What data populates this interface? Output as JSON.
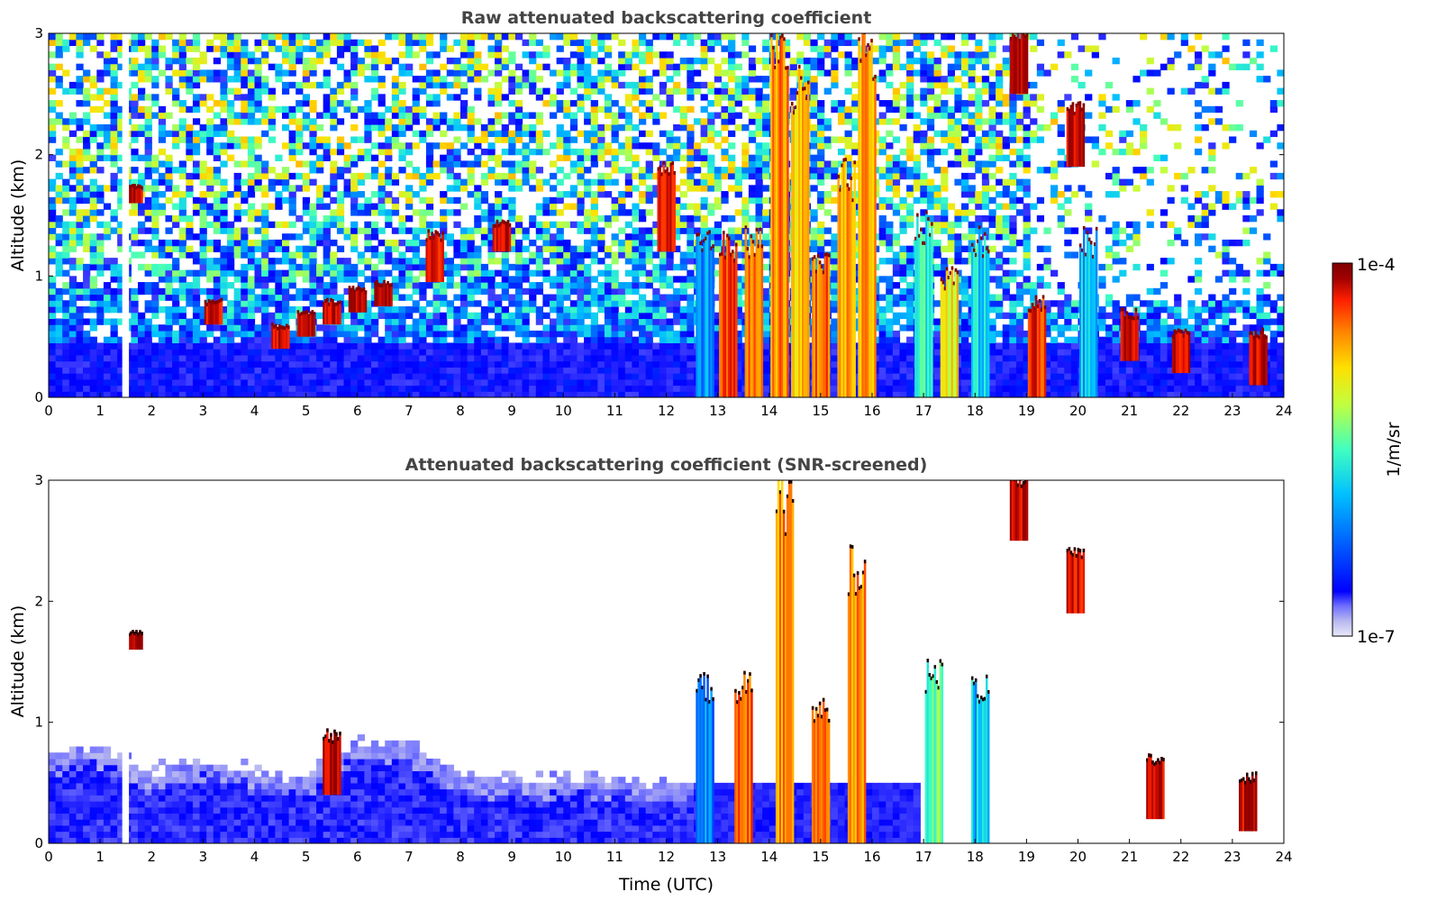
{
  "chart_data": [
    {
      "type": "heatmap",
      "title": "Raw attenuated backscattering coefficient",
      "xlabel": "",
      "ylabel": "Altitude (km)",
      "xlim": [
        0,
        24
      ],
      "ylim": [
        0,
        3
      ],
      "x_ticks": [
        "0",
        "1",
        "2",
        "3",
        "4",
        "5",
        "6",
        "7",
        "8",
        "9",
        "10",
        "11",
        "12",
        "13",
        "14",
        "15",
        "16",
        "17",
        "18",
        "19",
        "20",
        "21",
        "22",
        "23",
        "24"
      ],
      "y_ticks": [
        "0",
        "1",
        "2",
        "3"
      ],
      "grid": false,
      "gap": {
        "x_start": 1.43,
        "x_end": 1.56
      },
      "features": [
        {
          "x": 1.65,
          "y0": 1.6,
          "y1": 1.75,
          "level": 0.98
        },
        {
          "x": 3.2,
          "y0": 0.6,
          "y1": 0.8,
          "level": 0.96
        },
        {
          "x": 4.5,
          "y0": 0.4,
          "y1": 0.6,
          "level": 0.97
        },
        {
          "x": 5.0,
          "y0": 0.5,
          "y1": 0.7,
          "level": 0.97
        },
        {
          "x": 5.5,
          "y0": 0.6,
          "y1": 0.8,
          "level": 0.97
        },
        {
          "x": 6.0,
          "y0": 0.7,
          "y1": 0.9,
          "level": 0.98
        },
        {
          "x": 6.5,
          "y0": 0.75,
          "y1": 0.95,
          "level": 0.98
        },
        {
          "x": 7.5,
          "y0": 0.95,
          "y1": 1.35,
          "level": 0.95
        },
        {
          "x": 8.8,
          "y0": 1.2,
          "y1": 1.45,
          "level": 0.95
        },
        {
          "x": 12.0,
          "y0": 1.2,
          "y1": 1.9,
          "level": 0.96
        },
        {
          "x": 12.75,
          "y0": 0,
          "y1": 1.3,
          "level": 0.45
        },
        {
          "x": 13.2,
          "y0": 0,
          "y1": 1.25,
          "level": 0.88
        },
        {
          "x": 13.7,
          "y0": 0,
          "y1": 1.3,
          "level": 0.86
        },
        {
          "x": 14.2,
          "y0": 0,
          "y1": 2.9,
          "level": 0.82
        },
        {
          "x": 14.6,
          "y0": 0,
          "y1": 2.5,
          "level": 0.75
        },
        {
          "x": 15.0,
          "y0": 0,
          "y1": 1.1,
          "level": 0.85
        },
        {
          "x": 15.5,
          "y0": 0,
          "y1": 1.8,
          "level": 0.78
        },
        {
          "x": 15.9,
          "y0": 0,
          "y1": 2.8,
          "level": 0.8
        },
        {
          "x": 17.0,
          "y0": 0,
          "y1": 1.4,
          "level": 0.55
        },
        {
          "x": 17.5,
          "y0": 0,
          "y1": 1.0,
          "level": 0.72
        },
        {
          "x": 18.1,
          "y0": 0,
          "y1": 1.3,
          "level": 0.5
        },
        {
          "x": 18.85,
          "y0": 2.5,
          "y1": 3.0,
          "level": 0.97
        },
        {
          "x": 19.2,
          "y0": 0,
          "y1": 0.8,
          "level": 0.9
        },
        {
          "x": 19.95,
          "y0": 1.9,
          "y1": 2.4,
          "level": 0.95
        },
        {
          "x": 20.2,
          "y0": 0,
          "y1": 1.3,
          "level": 0.5
        },
        {
          "x": 21.0,
          "y0": 0.3,
          "y1": 0.7,
          "level": 0.96
        },
        {
          "x": 22.0,
          "y0": 0.2,
          "y1": 0.55,
          "level": 0.96
        },
        {
          "x": 23.5,
          "y0": 0.1,
          "y1": 0.55,
          "level": 0.97
        }
      ]
    },
    {
      "type": "heatmap",
      "title": "Attenuated backscattering coefficient (SNR-screened)",
      "xlabel": "Time (UTC)",
      "ylabel": "Altitude (km)",
      "xlim": [
        0,
        24
      ],
      "ylim": [
        0,
        3
      ],
      "x_ticks": [
        "0",
        "1",
        "2",
        "3",
        "4",
        "5",
        "6",
        "7",
        "8",
        "9",
        "10",
        "11",
        "12",
        "13",
        "14",
        "15",
        "16",
        "17",
        "18",
        "19",
        "20",
        "21",
        "22",
        "23",
        "24"
      ],
      "y_ticks": [
        "0",
        "1",
        "2",
        "3"
      ],
      "grid": false,
      "gap": {
        "x_start": 1.43,
        "x_end": 1.56
      },
      "boundary_layer_top": [
        [
          0,
          0.75
        ],
        [
          1,
          0.8
        ],
        [
          2,
          0.6
        ],
        [
          3,
          0.7
        ],
        [
          4,
          0.6
        ],
        [
          5,
          0.55
        ],
        [
          6,
          0.85
        ],
        [
          7,
          0.85
        ],
        [
          8,
          0.55
        ],
        [
          9,
          0.55
        ],
        [
          10,
          0.55
        ],
        [
          11,
          0.55
        ],
        [
          12,
          0.5
        ],
        [
          12.6,
          0.5
        ]
      ],
      "features": [
        {
          "x": 1.65,
          "y0": 1.6,
          "y1": 1.75,
          "level": 0.98
        },
        {
          "x": 5.5,
          "y0": 0.4,
          "y1": 0.9,
          "level": 0.99
        },
        {
          "x": 12.75,
          "y0": 0,
          "y1": 1.3,
          "level": 0.45
        },
        {
          "x": 13.5,
          "y0": 0,
          "y1": 1.3,
          "level": 0.86
        },
        {
          "x": 14.3,
          "y0": 0,
          "y1": 2.85,
          "level": 0.82
        },
        {
          "x": 15.0,
          "y0": 0,
          "y1": 1.1,
          "level": 0.85
        },
        {
          "x": 15.7,
          "y0": 0,
          "y1": 2.3,
          "level": 0.8
        },
        {
          "x": 17.2,
          "y0": 0,
          "y1": 1.4,
          "level": 0.6
        },
        {
          "x": 18.1,
          "y0": 0,
          "y1": 1.3,
          "level": 0.5
        },
        {
          "x": 18.85,
          "y0": 2.5,
          "y1": 3.0,
          "level": 0.97
        },
        {
          "x": 19.95,
          "y0": 1.9,
          "y1": 2.4,
          "level": 0.95
        },
        {
          "x": 21.5,
          "y0": 0.2,
          "y1": 0.7,
          "level": 0.96
        },
        {
          "x": 23.3,
          "y0": 0.1,
          "y1": 0.55,
          "level": 0.97
        }
      ]
    }
  ],
  "colorbar": {
    "label": "1/m/sr",
    "max_label": "1e-4",
    "min_label": "1e-7",
    "colormap": "jet",
    "colors": [
      "#e8e8f8",
      "#b8b8f0",
      "#7070ff",
      "#0000ff",
      "#0060ff",
      "#00c0ff",
      "#40ffc0",
      "#c0ff40",
      "#ffe000",
      "#ff8000",
      "#ff2000",
      "#a00000",
      "#800000"
    ]
  }
}
